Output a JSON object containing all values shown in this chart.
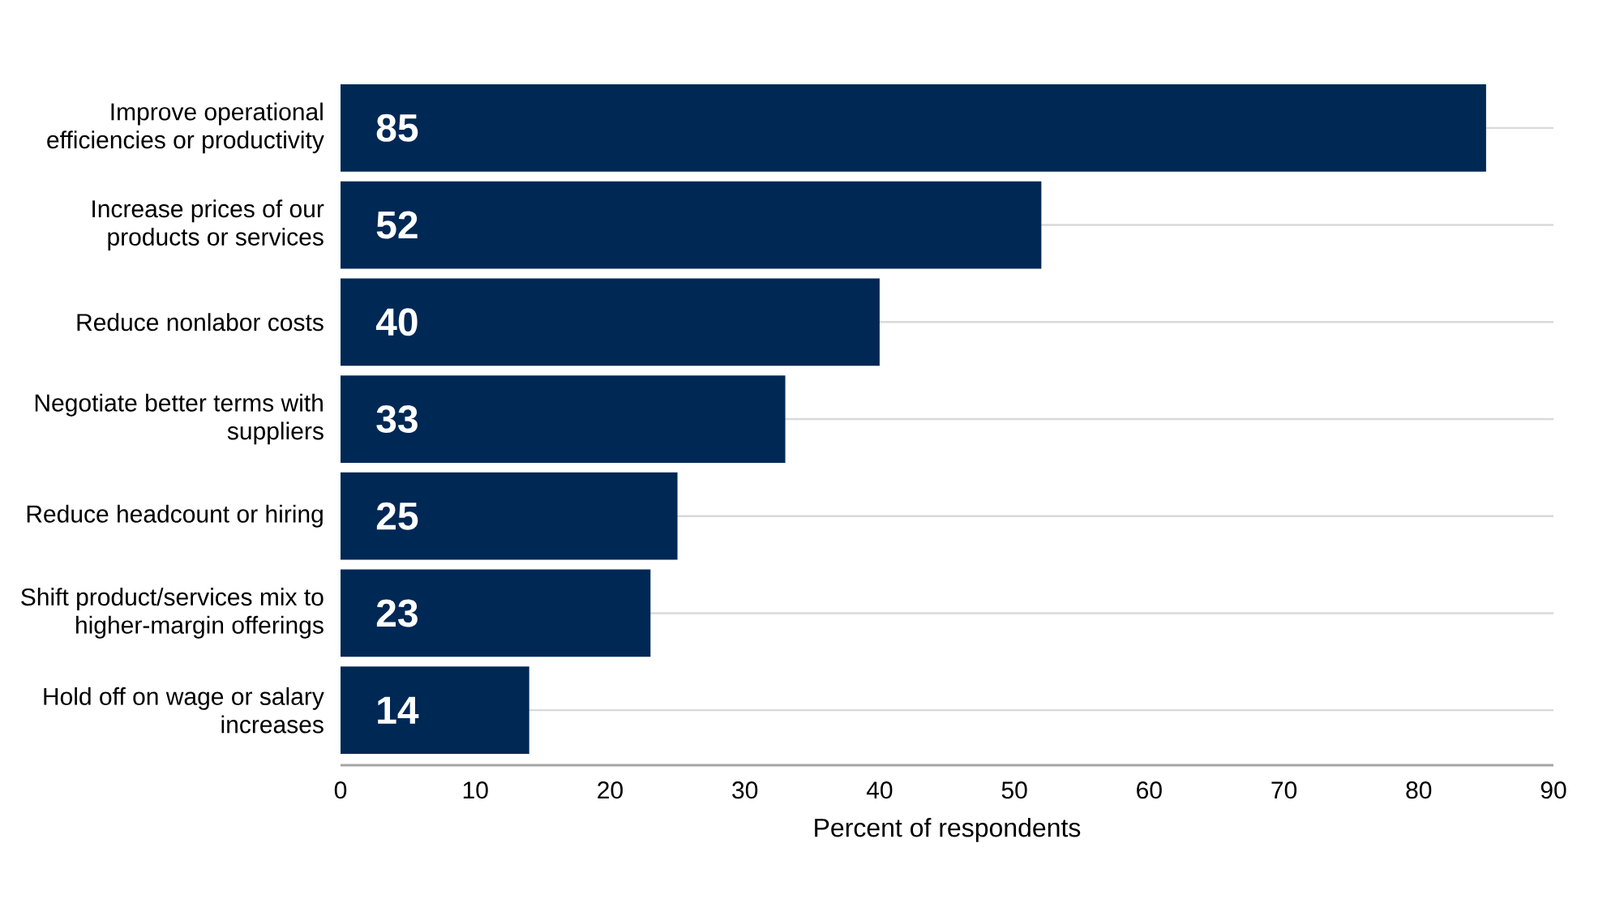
{
  "chart_data": {
    "type": "bar",
    "orientation": "horizontal",
    "xlabel": "Percent of respondents",
    "categories": [
      "Improve operational efficiencies or productivity",
      "Increase prices of our products or services",
      "Reduce nonlabor costs",
      "Negotiate better terms with suppliers",
      "Reduce headcount or hiring",
      "Shift product/services mix to higher-margin offerings",
      "Hold off on wage or salary increases"
    ],
    "values": [
      85,
      52,
      40,
      33,
      25,
      23,
      14
    ],
    "color": "#002855",
    "xlim": [
      0,
      90
    ],
    "xticks": [
      0,
      10,
      20,
      30,
      40,
      50,
      60,
      70,
      80,
      90
    ],
    "grid": "y",
    "data_labels": true
  }
}
